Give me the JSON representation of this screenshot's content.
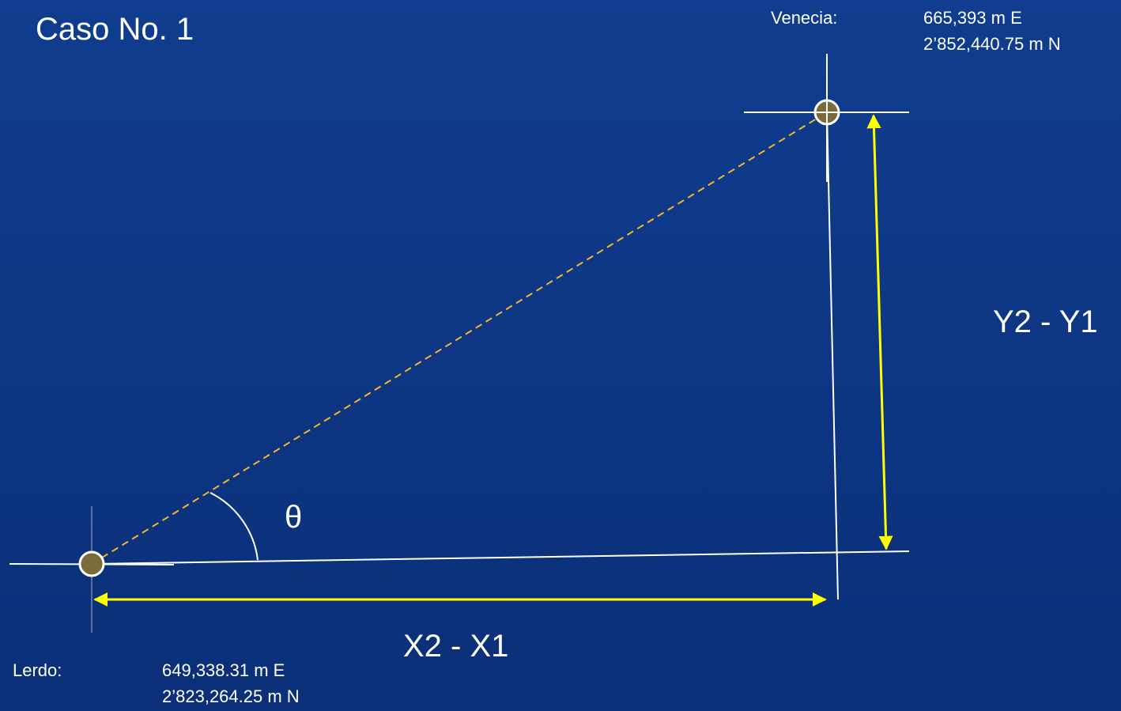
{
  "title": "Caso No. 1",
  "points": [
    {
      "name": "Venecia:",
      "east": "665,393 m E",
      "north": "2’852,440.75  m N"
    },
    {
      "name": "Lerdo:",
      "east": "649,338.31  m E",
      "north": "2’823,264.25 m N"
    }
  ],
  "angle_label": "θ",
  "dx_label": "X2 - X1",
  "dy_label": "Y2 - Y1"
}
